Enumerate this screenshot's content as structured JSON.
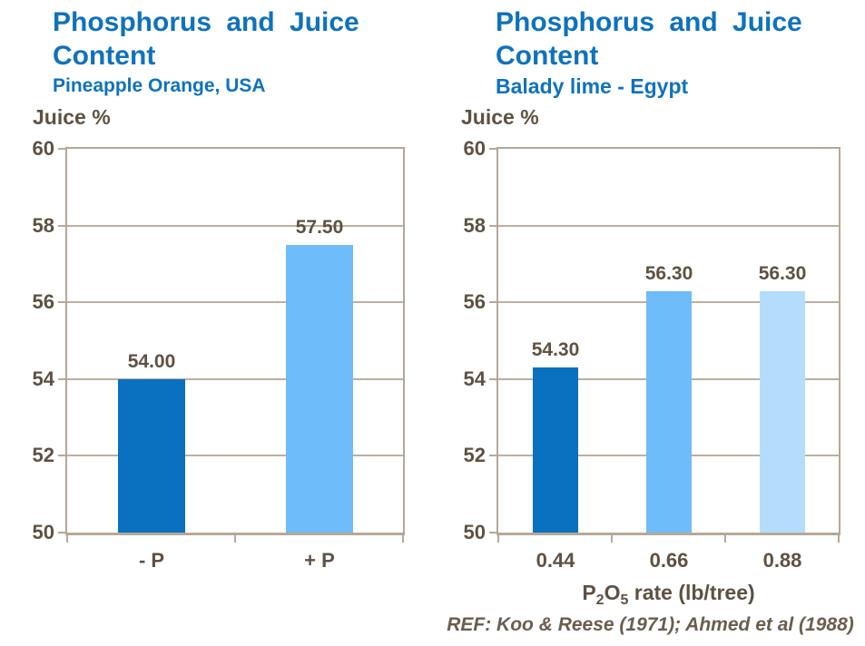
{
  "colors": {
    "title_blue": "#0f72bc",
    "text_brown": "#5e5142",
    "axis_tan": "#b6a898",
    "bar_dark_blue": "#0a70c0",
    "bar_light_blue": "#6ebcfa",
    "bar_pale_blue": "#b5ddfb"
  },
  "footer": {
    "ref_text": "REF: Koo & Reese (1971); Ahmed et al (1988)"
  },
  "chart_data": [
    {
      "type": "bar",
      "title": "Phosphorus and Juice Content",
      "subtitle": "Pineapple Orange, USA",
      "ylabel": "Juice %",
      "categories": [
        "- P",
        "+ P"
      ],
      "values": [
        54.0,
        57.5
      ],
      "value_labels": [
        "54.00",
        "57.50"
      ],
      "bar_colors": [
        "#0a70c0",
        "#6ebcfa"
      ],
      "ylim": [
        50,
        60
      ],
      "ytick_step": 2,
      "grid": true,
      "legend": null,
      "xlabel_parts": null
    },
    {
      "type": "bar",
      "title": "Phosphorus and Juice Content",
      "subtitle": "Balady lime - Egypt",
      "ylabel": "Juice %",
      "categories": [
        "0.44",
        "0.66",
        "0.88"
      ],
      "values": [
        54.3,
        56.3,
        56.3
      ],
      "value_labels": [
        "54.30",
        "56.30",
        "56.30"
      ],
      "bar_colors": [
        "#0a70c0",
        "#6ebcfa",
        "#b5ddfb"
      ],
      "ylim": [
        50,
        60
      ],
      "ytick_step": 2,
      "grid": true,
      "legend": null,
      "xlabel_parts": [
        {
          "text": "P"
        },
        {
          "text": "2",
          "sub": true
        },
        {
          "text": "O"
        },
        {
          "text": "5",
          "sub": true
        },
        {
          "text": " rate (lb/tree)"
        }
      ]
    }
  ]
}
